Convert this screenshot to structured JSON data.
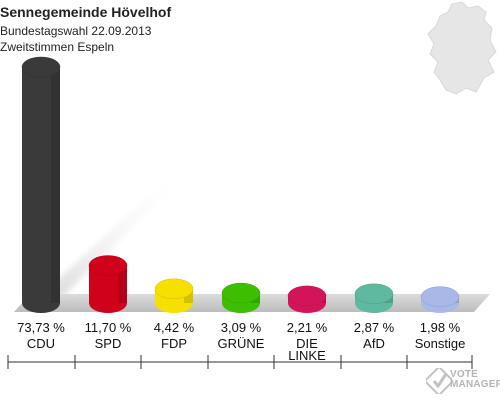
{
  "title": "Sennegemeinde Hövelhof",
  "subtitle_1": "Bundestagswahl 22.09.2013",
  "subtitle_2": "Zweitstimmen Espeln",
  "watermark_line1": "VOTE",
  "watermark_line2": "MANAGER",
  "chart_data": {
    "type": "bar",
    "title": "Sennegemeinde Hövelhof",
    "categories": [
      "CDU",
      "SPD",
      "FDP",
      "GRÜNE",
      "DIE LINKE",
      "AfD",
      "Sonstige"
    ],
    "category_lines": [
      [
        "CDU"
      ],
      [
        "SPD"
      ],
      [
        "FDP"
      ],
      [
        "GRÜNE"
      ],
      [
        "DIE",
        "LINKE"
      ],
      [
        "AfD"
      ],
      [
        "Sonstige"
      ]
    ],
    "values": [
      73.73,
      11.7,
      4.42,
      3.09,
      2.21,
      2.87,
      1.98
    ],
    "value_labels": [
      "73,73 %",
      "11,70 %",
      "4,42 %",
      "3,09 %",
      "2,21 %",
      "2,87 %",
      "1,98 %"
    ],
    "colors": [
      "#3a3a3a",
      "#d0021b",
      "#f5e000",
      "#3dbf00",
      "#d4145a",
      "#5fb8a0",
      "#a9b8e6"
    ],
    "unit": "%",
    "grid": false,
    "legend": "none"
  }
}
